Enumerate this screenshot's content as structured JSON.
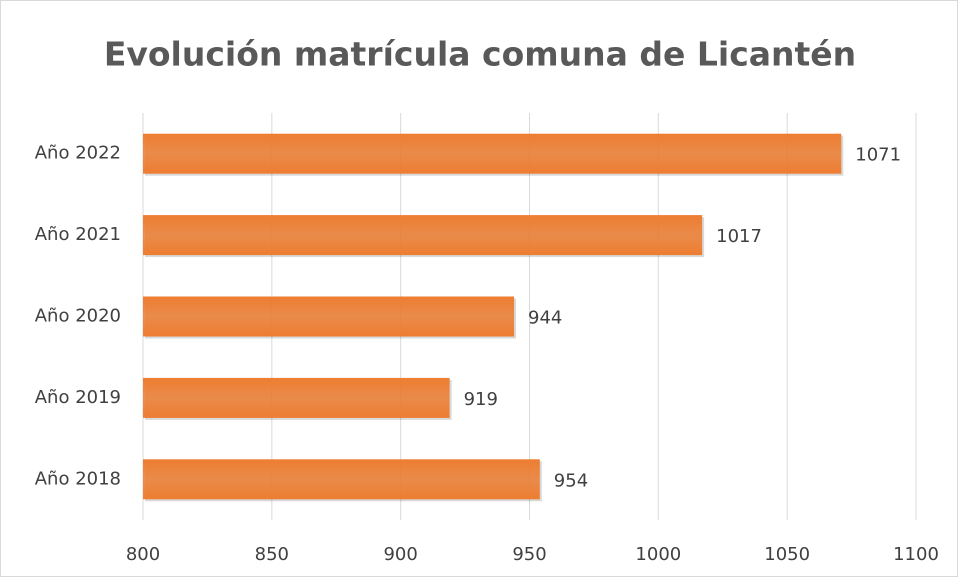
{
  "chart_data": {
    "type": "bar",
    "orientation": "horizontal",
    "title": "Evolución matrícula comuna de Licantén",
    "categories": [
      "Año 2022",
      "Año 2021",
      "Año 2020",
      "Año 2019",
      "Año 2018"
    ],
    "values": [
      1071,
      1017,
      944,
      919,
      954
    ],
    "color": "#ed7d31",
    "xlim": [
      800,
      1100
    ],
    "xticks": [
      800,
      850,
      900,
      950,
      1000,
      1050,
      1100
    ],
    "grid": true
  }
}
